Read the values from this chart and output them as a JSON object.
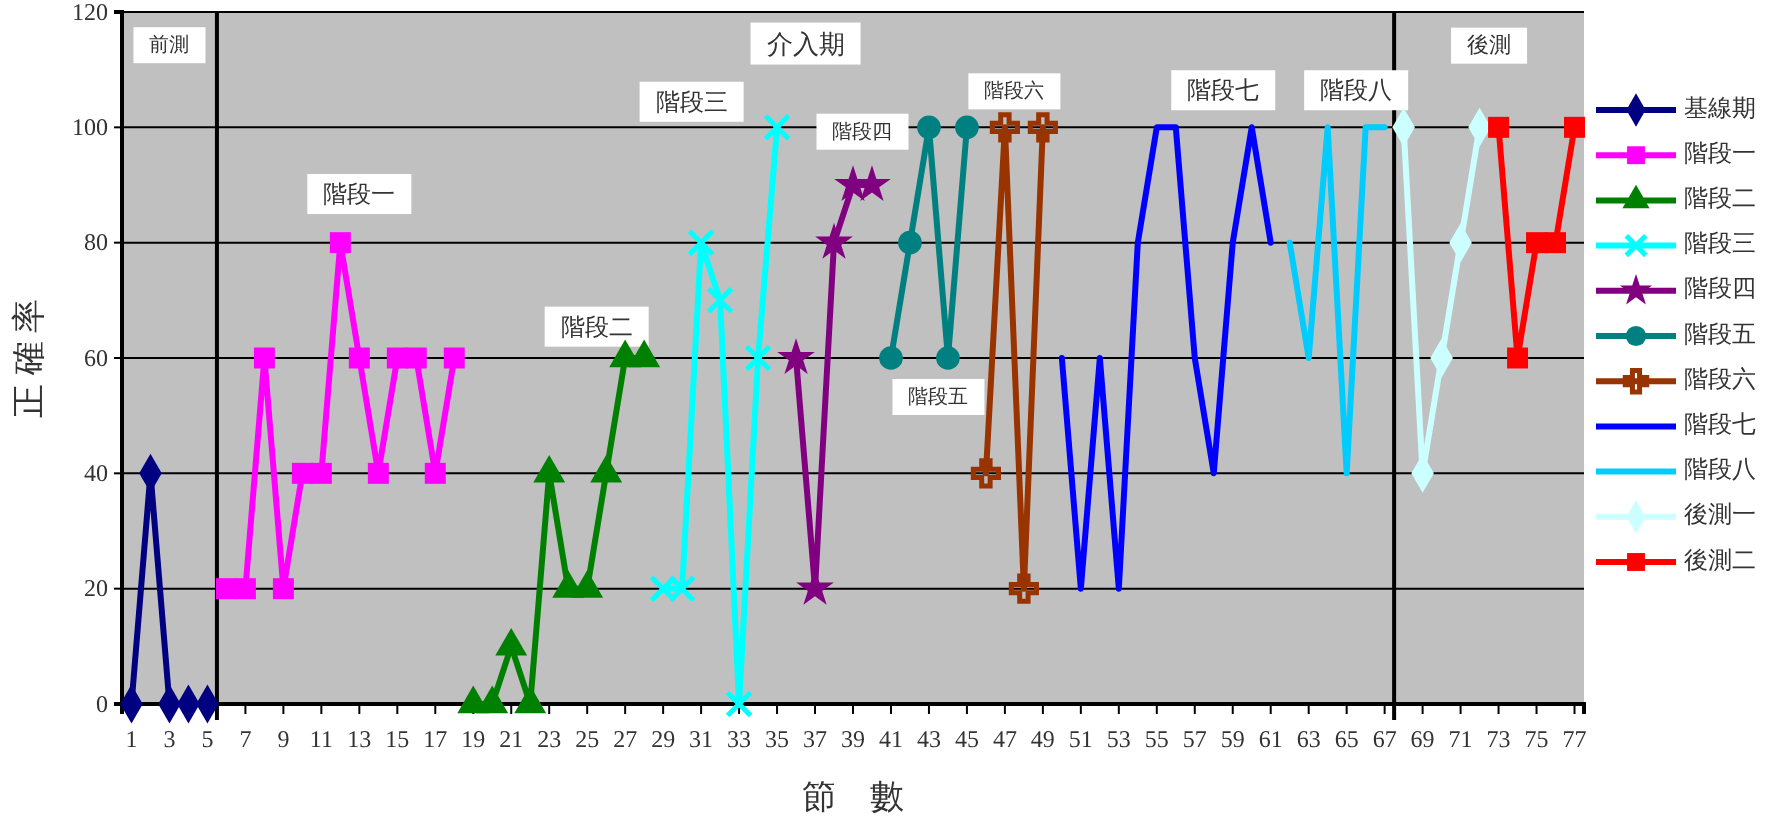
{
  "chart_data": {
    "type": "line",
    "xlabel": "節　數",
    "ylabel": "正 確 率",
    "xlim": [
      0.5,
      77.5
    ],
    "ylim": [
      0,
      120
    ],
    "xticks": [
      1,
      3,
      5,
      7,
      9,
      11,
      13,
      15,
      17,
      19,
      21,
      23,
      25,
      27,
      29,
      31,
      33,
      35,
      37,
      39,
      41,
      43,
      45,
      47,
      49,
      51,
      53,
      55,
      57,
      59,
      61,
      63,
      65,
      67,
      69,
      71,
      73,
      75,
      77
    ],
    "yticks": [
      0,
      20,
      40,
      60,
      80,
      100,
      120
    ],
    "grid": "y",
    "legend": "right",
    "series": [
      {
        "name": "基線期",
        "color": "#000080",
        "marker": "diamond",
        "x": [
          1,
          2,
          3,
          4,
          5
        ],
        "values": [
          0,
          40,
          0,
          0,
          0
        ]
      },
      {
        "name": "階段一",
        "color": "#ff00ff",
        "marker": "square",
        "x": [
          6,
          7,
          8,
          9,
          10,
          11,
          12,
          13,
          14,
          15,
          16,
          17,
          18
        ],
        "values": [
          20,
          20,
          60,
          20,
          40,
          40,
          80,
          60,
          40,
          60,
          60,
          40,
          60
        ]
      },
      {
        "name": "階段二",
        "color": "#008000",
        "marker": "triangle",
        "x": [
          19,
          20,
          21,
          22,
          23,
          24,
          25,
          26,
          27,
          28
        ],
        "values": [
          0,
          0,
          10,
          0,
          40,
          20,
          20,
          40,
          60,
          60
        ]
      },
      {
        "name": "階段三",
        "color": "#00ffff",
        "marker": "x",
        "x": [
          29,
          30,
          31,
          32,
          33,
          34,
          35
        ],
        "values": [
          20,
          20,
          80,
          70,
          0,
          60,
          100
        ]
      },
      {
        "name": "階段四",
        "color": "#800080",
        "marker": "star",
        "x": [
          36,
          37,
          38,
          39,
          40
        ],
        "values": [
          60,
          20,
          80,
          90,
          90
        ]
      },
      {
        "name": "階段五",
        "color": "#008080",
        "marker": "circle",
        "x": [
          41,
          42,
          43,
          44,
          45
        ],
        "values": [
          60,
          80,
          100,
          60,
          100
        ]
      },
      {
        "name": "階段六",
        "color": "#993300",
        "marker": "cross",
        "x": [
          46,
          47,
          48,
          49
        ],
        "values": [
          40,
          100,
          20,
          100
        ]
      },
      {
        "name": "階段七",
        "color": "#0000ff",
        "x": [
          50,
          51,
          52,
          53,
          54,
          55,
          56,
          57,
          58,
          59,
          60,
          61
        ],
        "values": [
          60,
          20,
          60,
          20,
          80,
          100,
          100,
          60,
          40,
          80,
          100,
          80
        ]
      },
      {
        "name": "階段八",
        "color": "#00ccff",
        "x": [
          62,
          63,
          64,
          65,
          66,
          67
        ],
        "values": [
          80,
          60,
          100,
          40,
          100,
          100
        ]
      },
      {
        "name": "後測一",
        "color": "#ccffff",
        "marker": "diamond",
        "x": [
          68,
          69,
          70,
          71,
          72
        ],
        "values": [
          100,
          40,
          60,
          80,
          100
        ]
      },
      {
        "name": "後測二",
        "color": "#ff0000",
        "marker": "square",
        "x": [
          73,
          74,
          75,
          76,
          77
        ],
        "values": [
          100,
          60,
          80,
          80,
          100
        ]
      }
    ],
    "ref_lines": [
      {
        "axis": "x",
        "value": 5.5,
        "color": "#000000"
      },
      {
        "axis": "x",
        "value": 67.5,
        "color": "#000000"
      }
    ],
    "annotations": [
      "前測",
      "介入期",
      "後測",
      "階段一",
      "階段二",
      "階段三",
      "階段四",
      "階段五",
      "階段六",
      "階段七",
      "階段八"
    ]
  }
}
